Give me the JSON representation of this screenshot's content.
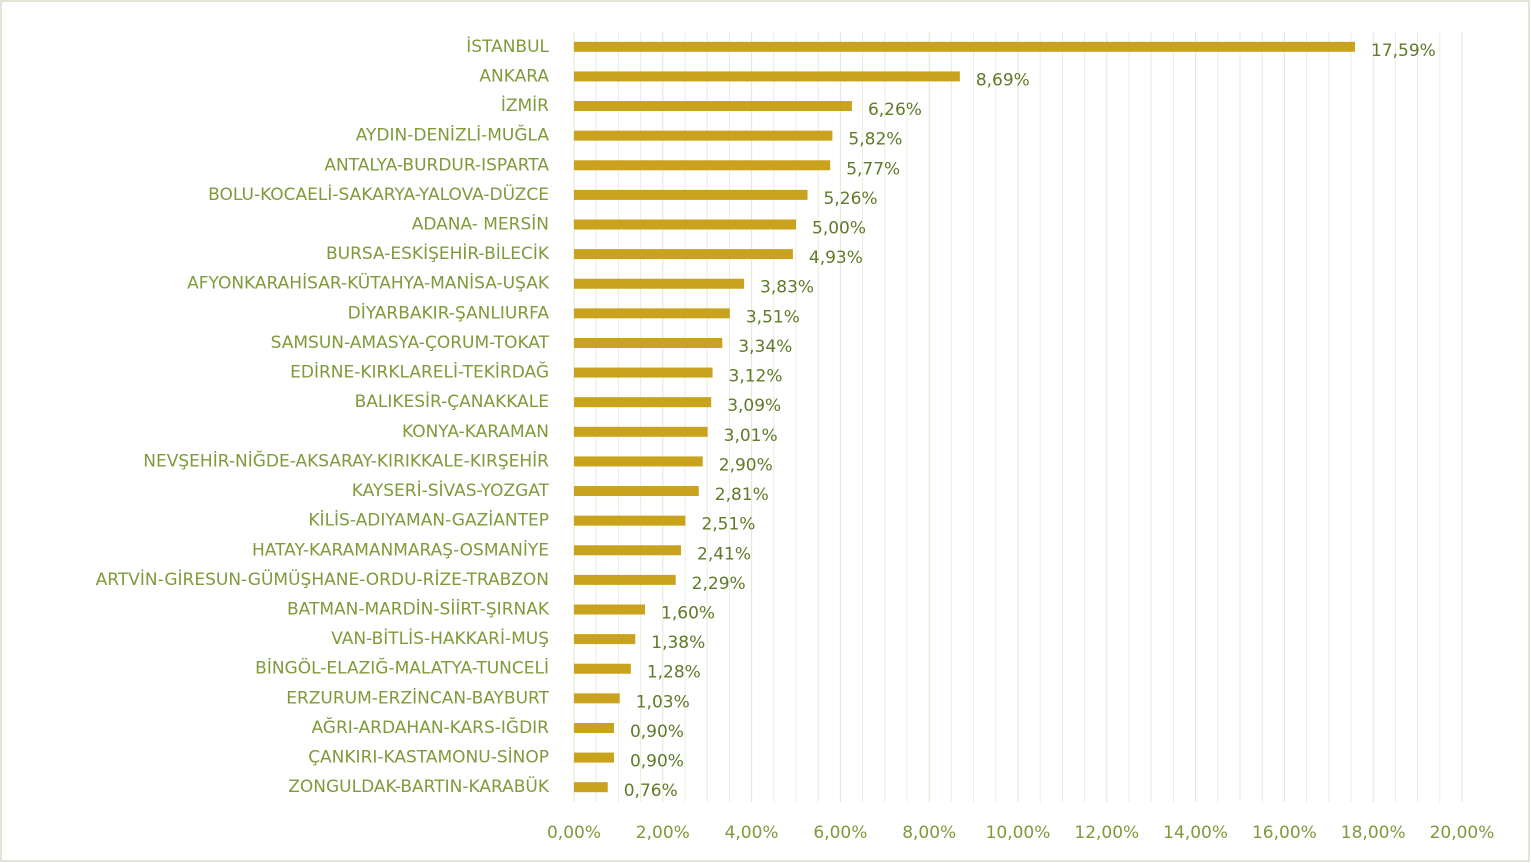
{
  "chart_data": {
    "type": "bar",
    "orientation": "horizontal",
    "color": "#c9a21e",
    "categories": [
      "İSTANBUL",
      "ANKARA",
      "İZMİR",
      "AYDIN-DENİZLİ-MUĞLA",
      "ANTALYA-BURDUR-ISPARTA",
      "BOLU-KOCAELİ-SAKARYA-YALOVA-DÜZCE",
      "ADANA- MERSİN",
      "BURSA-ESKİŞEHİR-BİLECİK",
      "AFYONKARAHİSAR-KÜTAHYA-MANİSA-UŞAK",
      "DİYARBAKIR-ŞANLIURFA",
      "SAMSUN-AMASYA-ÇORUM-TOKAT",
      "EDİRNE-KIRKLARELİ-TEKİRDAĞ",
      "BALIKESİR-ÇANAKKALE",
      "KONYA-KARAMAN",
      "NEVŞEHİR-NİĞDE-AKSARAY-KIRIKKALE-KIRŞEHİR",
      "KAYSERİ-SİVAS-YOZGAT",
      "KİLİS-ADIYAMAN-GAZİANTEP",
      "HATAY-KARAMANMARAŞ-OSMANİYE",
      "ARTVİN-GİRESUN-GÜMÜŞHANE-ORDU-RİZE-TRABZON",
      "BATMAN-MARDİN-SİİRT-ŞIRNAK",
      "VAN-BİTLİS-HAKKARİ-MUŞ",
      "BİNGÖL-ELAZIĞ-MALATYA-TUNCELİ",
      "ERZURUM-ERZİNCAN-BAYBURT",
      "AĞRI-ARDAHAN-KARS-IĞDIR",
      "ÇANKIRI-KASTAMONU-SİNOP",
      "ZONGULDAK-BARTIN-KARABÜK"
    ],
    "values": [
      17.59,
      8.69,
      6.26,
      5.82,
      5.77,
      5.26,
      5.0,
      4.93,
      3.83,
      3.51,
      3.34,
      3.12,
      3.09,
      3.01,
      2.9,
      2.81,
      2.51,
      2.41,
      2.29,
      1.6,
      1.38,
      1.28,
      1.03,
      0.9,
      0.9,
      0.76
    ],
    "value_labels": [
      "17,59%",
      "8,69%",
      "6,26%",
      "5,82%",
      "5,77%",
      "5,26%",
      "5,00%",
      "4,93%",
      "3,83%",
      "3,51%",
      "3,34%",
      "3,12%",
      "3,09%",
      "3,01%",
      "2,90%",
      "2,81%",
      "2,51%",
      "2,41%",
      "2,29%",
      "1,60%",
      "1,38%",
      "1,28%",
      "1,03%",
      "0,90%",
      "0,90%",
      "0,76%"
    ],
    "xlim": [
      0,
      20
    ],
    "xticks": [
      {
        "value": 0,
        "label": "0,00%"
      },
      {
        "value": 2,
        "label": "2,00%"
      },
      {
        "value": 4,
        "label": "4,00%"
      },
      {
        "value": 6,
        "label": "6,00%"
      },
      {
        "value": 8,
        "label": "8,00%"
      },
      {
        "value": 10,
        "label": "10,00%"
      },
      {
        "value": 12,
        "label": "12,00%"
      },
      {
        "value": 14,
        "label": "14,00%"
      },
      {
        "value": 16,
        "label": "16,00%"
      },
      {
        "value": 18,
        "label": "18,00%"
      },
      {
        "value": 20,
        "label": "20,00%"
      }
    ],
    "xminorticks": [
      0.5,
      1,
      1.5,
      2.5,
      3,
      3.5,
      4.5,
      5,
      5.5,
      6.5,
      7,
      7.5,
      8.5,
      9,
      9.5,
      10.5,
      11,
      11.5,
      12.5,
      13,
      13.5,
      14.5,
      15,
      15.5,
      16.5,
      17,
      17.5,
      18.5,
      19,
      19.5
    ],
    "grid": true
  }
}
